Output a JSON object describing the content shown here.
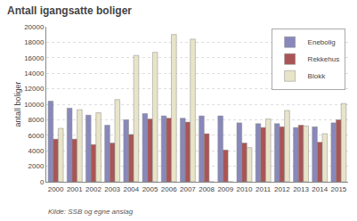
{
  "chart_data": {
    "type": "bar",
    "title": "Antall igangsatte boliger",
    "ylabel": "antall boliger",
    "annotations": [
      "Kilde: SSB og egne anslag"
    ],
    "categories": [
      "2000",
      "2001",
      "2002",
      "2003",
      "2004",
      "2005",
      "2006",
      "2007",
      "2008",
      "2009",
      "2010",
      "2011",
      "2012",
      "2013",
      "2014",
      "2015"
    ],
    "series": [
      {
        "name": "Enebolig",
        "color": "#8888bb",
        "values": [
          10400,
          9500,
          8600,
          7300,
          8000,
          8800,
          8500,
          8200,
          8500,
          8500,
          7600,
          7500,
          7500,
          7000,
          7100,
          7600
        ]
      },
      {
        "name": "Rekkehus",
        "color": "#aa5555",
        "values": [
          5500,
          5500,
          4800,
          5000,
          6100,
          8100,
          8200,
          7700,
          6200,
          4100,
          5000,
          7000,
          7100,
          7300,
          5100,
          8000
        ]
      },
      {
        "name": "Blokk",
        "color": "#e8e4c8",
        "values": [
          6900,
          9300,
          8900,
          10600,
          16300,
          16700,
          19000,
          18400,
          0,
          0,
          4400,
          8100,
          9200,
          7200,
          6200,
          10100
        ]
      }
    ],
    "ylim": [
      0,
      20000
    ],
    "yticks": [
      0,
      2000,
      4000,
      6000,
      8000,
      10000,
      12000,
      14000,
      16000,
      18000,
      20000
    ],
    "grid": true,
    "legend": "upper right"
  }
}
